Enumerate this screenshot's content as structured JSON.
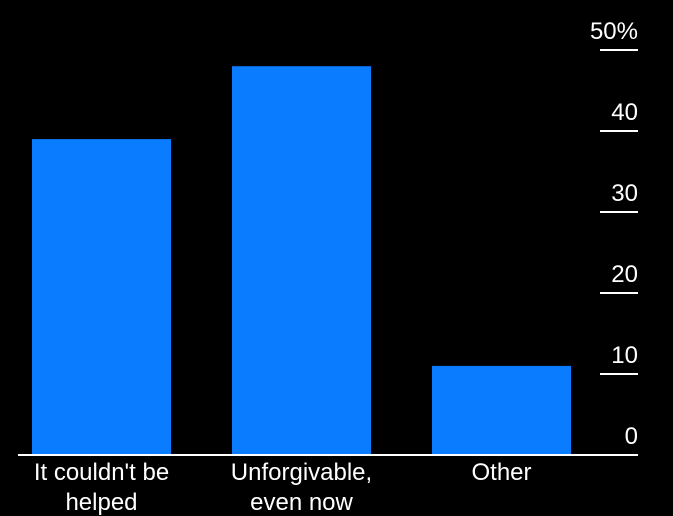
{
  "chart_data": {
    "type": "bar",
    "categories": [
      [
        "It couldn't be",
        "helped"
      ],
      [
        "Unforgivable,",
        "even now"
      ],
      [
        "Other"
      ]
    ],
    "values": [
      39,
      48,
      11
    ],
    "ylim": [
      0,
      50
    ],
    "yticks": [
      0,
      10,
      20,
      30,
      40,
      50
    ],
    "ytick_labels": [
      "0",
      "10",
      "20",
      "30",
      "40",
      "50%"
    ],
    "grid": false,
    "y_axis_position": "right",
    "colors": {
      "bar": "#0a7cff",
      "background": "#000000",
      "text": "#ffffff",
      "axis": "#ffffff"
    }
  }
}
